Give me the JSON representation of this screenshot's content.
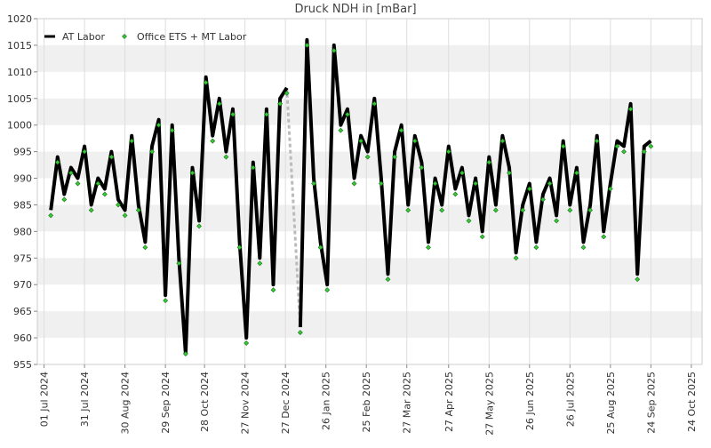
{
  "chart_data": {
    "type": "line",
    "title": "Druck NDH in [mBar]",
    "xlim": [
      "2024-06-26",
      "2025-11-01"
    ],
    "ylim": [
      955,
      1020
    ],
    "yticks": [
      955,
      960,
      965,
      970,
      975,
      980,
      985,
      990,
      995,
      1000,
      1005,
      1010,
      1015,
      1020
    ],
    "xticks": [
      {
        "value": "2024-07-01",
        "label": "01 Jul 2024"
      },
      {
        "value": "2024-07-31",
        "label": "31 Jul 2024"
      },
      {
        "value": "2024-08-30",
        "label": "30 Aug 2024"
      },
      {
        "value": "2024-09-29",
        "label": "29 Sep 2024"
      },
      {
        "value": "2024-10-28",
        "label": "28 Oct 2024"
      },
      {
        "value": "2024-11-27",
        "label": "27 Nov 2024"
      },
      {
        "value": "2024-12-27",
        "label": "27 Dec 2024"
      },
      {
        "value": "2025-01-26",
        "label": "26 Jan 2025"
      },
      {
        "value": "2025-02-25",
        "label": "25 Feb 2025"
      },
      {
        "value": "2025-03-27",
        "label": "27 Mar 2025"
      },
      {
        "value": "2025-04-27",
        "label": "27 Apr 2025"
      },
      {
        "value": "2025-05-27",
        "label": "27 May 2025"
      },
      {
        "value": "2025-06-26",
        "label": "26 Jun 2025"
      },
      {
        "value": "2025-07-26",
        "label": "26 Jul 2025"
      },
      {
        "value": "2025-08-25",
        "label": "25 Aug 2025"
      },
      {
        "value": "2025-09-24",
        "label": "24 Sep 2025"
      },
      {
        "value": "2025-10-24",
        "label": "24 Oct 2025"
      }
    ],
    "grid": "bands",
    "legend": "upper left",
    "x": [
      "2024-07-06",
      "2024-07-11",
      "2024-07-16",
      "2024-07-21",
      "2024-07-26",
      "2024-07-31",
      "2024-08-05",
      "2024-08-10",
      "2024-08-15",
      "2024-08-20",
      "2024-08-25",
      "2024-08-30",
      "2024-09-04",
      "2024-09-09",
      "2024-09-14",
      "2024-09-19",
      "2024-09-24",
      "2024-09-29",
      "2024-10-04",
      "2024-10-09",
      "2024-10-14",
      "2024-10-19",
      "2024-10-24",
      "2024-10-29",
      "2024-11-03",
      "2024-11-08",
      "2024-11-13",
      "2024-11-18",
      "2024-11-23",
      "2024-11-28",
      "2024-12-03",
      "2024-12-08",
      "2024-12-13",
      "2024-12-18",
      "2024-12-23",
      "2024-12-28",
      "2025-01-02",
      "2025-01-07",
      "2025-01-12",
      "2025-01-17",
      "2025-01-22",
      "2025-01-27",
      "2025-02-01",
      "2025-02-06",
      "2025-02-11",
      "2025-02-16",
      "2025-02-21",
      "2025-02-26",
      "2025-03-03",
      "2025-03-08",
      "2025-03-13",
      "2025-03-18",
      "2025-03-23",
      "2025-03-28",
      "2025-04-02",
      "2025-04-07",
      "2025-04-12",
      "2025-04-17",
      "2025-04-22",
      "2025-04-27",
      "2025-05-02",
      "2025-05-07",
      "2025-05-12",
      "2025-05-17",
      "2025-05-22",
      "2025-05-27",
      "2025-06-01",
      "2025-06-06",
      "2025-06-11",
      "2025-06-16",
      "2025-06-21",
      "2025-06-26",
      "2025-07-01",
      "2025-07-06",
      "2025-07-11",
      "2025-07-16",
      "2025-07-21",
      "2025-07-26",
      "2025-07-31",
      "2025-08-05",
      "2025-08-10",
      "2025-08-15",
      "2025-08-20",
      "2025-08-25",
      "2025-08-30",
      "2025-09-04",
      "2025-09-09",
      "2025-09-14",
      "2025-09-19",
      "2025-09-24"
    ],
    "series": [
      {
        "name": "AT Labor",
        "color": "#000000",
        "values": [
          984,
          994,
          987,
          992,
          990,
          996,
          985,
          990,
          988,
          995,
          986,
          984,
          998,
          985,
          978,
          996,
          1001,
          968,
          1000,
          975,
          957,
          992,
          982,
          1009,
          998,
          1005,
          995,
          1003,
          978,
          960,
          993,
          975,
          1003,
          970,
          1005,
          1007,
          null,
          962,
          1016,
          990,
          978,
          970,
          1015,
          1000,
          1003,
          990,
          998,
          995,
          1005,
          990,
          972,
          995,
          1000,
          985,
          998,
          993,
          978,
          990,
          985,
          996,
          988,
          992,
          983,
          990,
          980,
          994,
          985,
          998,
          992,
          976,
          985,
          989,
          978,
          987,
          990,
          983,
          997,
          985,
          992,
          978,
          985,
          998,
          980,
          989,
          997,
          996,
          1004,
          972,
          996,
          997
        ]
      },
      {
        "name": "Office ETS + MT Labor",
        "color": "#33cc33",
        "values": [
          983,
          993,
          986,
          991,
          989,
          995,
          984,
          989,
          987,
          994,
          985,
          983,
          997,
          984,
          977,
          995,
          1000,
          967,
          999,
          974,
          957,
          991,
          981,
          1008,
          997,
          1004,
          994,
          1002,
          977,
          959,
          992,
          974,
          1002,
          969,
          1004,
          1006,
          null,
          961,
          1015,
          989,
          977,
          969,
          1014,
          999,
          1002,
          989,
          997,
          994,
          1004,
          989,
          971,
          994,
          999,
          984,
          997,
          992,
          977,
          989,
          984,
          995,
          987,
          991,
          982,
          989,
          979,
          993,
          984,
          997,
          991,
          975,
          984,
          988,
          977,
          986,
          989,
          982,
          996,
          984,
          991,
          977,
          984,
          997,
          979,
          988,
          996,
          995,
          1003,
          971,
          995,
          996
        ]
      }
    ]
  }
}
